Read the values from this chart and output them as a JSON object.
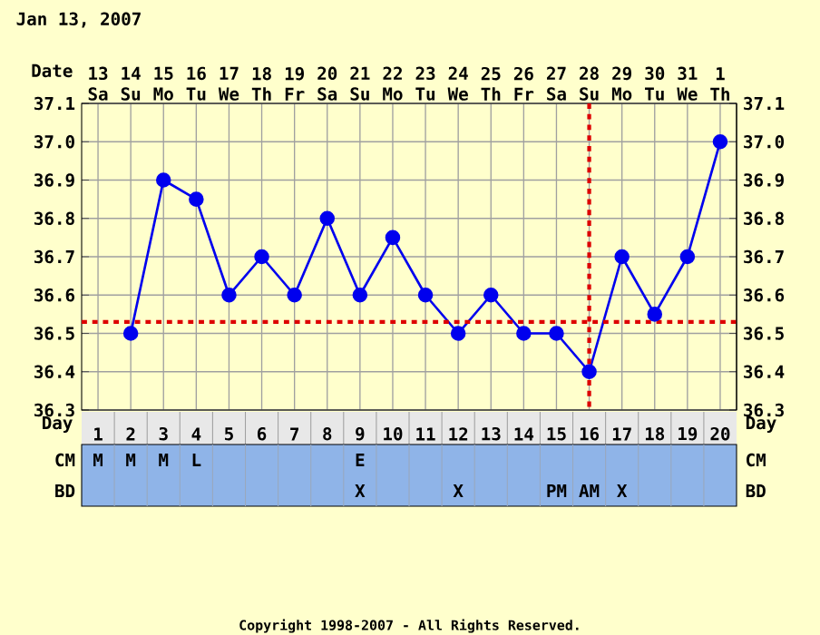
{
  "chart_data": [
    {
      "type": "line",
      "title": "Jan 13, 2007",
      "xlabel": "Date",
      "categories": [
        "13 Sa",
        "14 Su",
        "15 Mo",
        "16 Tu",
        "17 We",
        "18 Th",
        "19 Fr",
        "20 Sa",
        "21 Su",
        "22 Mo",
        "23 Tu",
        "24 We",
        "25 Th",
        "26 Fr",
        "27 Sa",
        "28 Su",
        "29 Mo",
        "30 Tu",
        "31 We",
        "1 Th"
      ],
      "series": [
        {
          "color": "#0000ee",
          "values": [
            null,
            36.5,
            36.9,
            36.85,
            36.6,
            36.7,
            36.6,
            36.8,
            36.6,
            36.75,
            36.6,
            36.5,
            36.6,
            36.5,
            36.5,
            36.4,
            36.7,
            36.55,
            36.7,
            37.0
          ]
        }
      ],
      "ylim": [
        36.3,
        37.1
      ],
      "yticks": [
        36.3,
        36.4,
        36.5,
        36.6,
        36.7,
        36.8,
        36.9,
        {
          "value": 37.0,
          "label": "37.0"
        },
        37.1
      ],
      "y2lim": [
        36.3,
        37.1
      ],
      "y2ticks": [
        36.3,
        36.4,
        36.5,
        36.6,
        36.7,
        36.8,
        36.9,
        {
          "value": 37.0,
          "label": "37.0"
        },
        37.1
      ],
      "ref_lines": [
        {
          "axis": "y",
          "value": 36.53,
          "color": "#dd0000",
          "line_style": "dotted"
        },
        {
          "axis": "x",
          "value": "28 Su",
          "color": "#dd0000",
          "line_style": "dotted"
        }
      ],
      "grid": true,
      "marker": "circle",
      "line_style": "solid",
      "annotations": [
        "Copyright 1998-2007 - All Rights Reserved."
      ]
    },
    {
      "type": "heatmap",
      "xlabel": "Day",
      "categories": [
        "1",
        "2",
        "3",
        "4",
        "5",
        "6",
        "7",
        "8",
        "9",
        "10",
        "11",
        "12",
        "13",
        "14",
        "15",
        "16",
        "17",
        "18",
        "19",
        "20"
      ],
      "y_categories": [
        "CM",
        "BD"
      ],
      "y2_categories": [
        "CM",
        "BD"
      ],
      "cells": [
        [
          null,
          null,
          null,
          null,
          null,
          null,
          null,
          null,
          null,
          null,
          null,
          null,
          null,
          null,
          null,
          null,
          null,
          null,
          null,
          null
        ],
        [
          null,
          null,
          null,
          null,
          null,
          null,
          null,
          null,
          null,
          null,
          null,
          null,
          null,
          null,
          null,
          null,
          null,
          null,
          null,
          null
        ]
      ],
      "cell_labels": [
        [
          "M",
          "M",
          "M",
          "L",
          null,
          null,
          null,
          null,
          "E",
          null,
          null,
          null,
          null,
          null,
          null,
          null,
          null,
          null,
          null,
          null
        ],
        [
          null,
          null,
          null,
          null,
          null,
          null,
          null,
          null,
          "X",
          null,
          null,
          "X",
          null,
          null,
          "PM",
          "AM",
          "X",
          null,
          null,
          null
        ]
      ]
    }
  ]
}
